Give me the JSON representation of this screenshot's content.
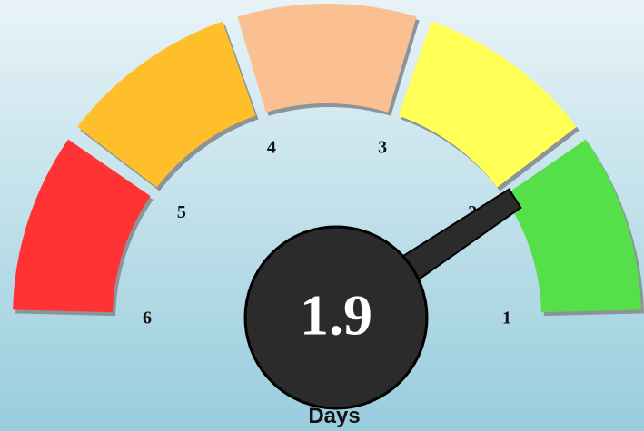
{
  "chart_data": {
    "type": "gauge",
    "value": 1.9,
    "label": "Days",
    "ylim": [
      1,
      6
    ],
    "yticks": [
      1,
      2,
      3,
      4,
      5,
      6
    ],
    "bands": [
      {
        "from": 1,
        "to": 2,
        "color": "#55e04a"
      },
      {
        "from": 2,
        "to": 3,
        "color": "#ffff55"
      },
      {
        "from": 3,
        "to": 4,
        "color": "#fbc092"
      },
      {
        "from": 4,
        "to": 5,
        "color": "#ffbf2a"
      },
      {
        "from": 5,
        "to": 6,
        "color": "#ff3333"
      }
    ]
  }
}
